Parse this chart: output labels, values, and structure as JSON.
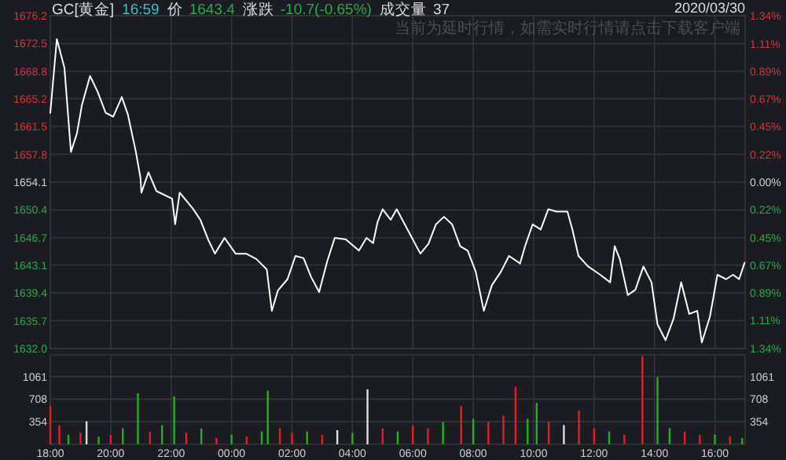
{
  "chart_data": [
    {
      "type": "line",
      "title": "GC[黄金]",
      "annotations": [
        "16:59",
        "价",
        "1643.4",
        "涨跌",
        "-10.7(-0.65%)",
        "成交量",
        "37",
        "2020/03/30",
        "当前为延时行情，如需实时行情请点击下载客户端"
      ],
      "x": [
        "2020-03-29T18:00",
        "2020-03-29T18:13",
        "2020-03-29T18:28",
        "2020-03-29T18:41",
        "2020-03-29T18:53",
        "2020-03-29T19:03",
        "2020-03-29T19:19",
        "2020-03-29T19:34",
        "2020-03-29T19:50",
        "2020-03-29T20:05",
        "2020-03-29T20:22",
        "2020-03-29T20:34",
        "2020-03-29T20:50",
        "2020-03-29T20:59",
        "2020-03-29T21:01",
        "2020-03-29T21:15",
        "2020-03-29T21:31",
        "2020-03-29T22:02",
        "2020-03-29T22:08",
        "2020-03-29T22:17",
        "2020-03-29T22:43",
        "2020-03-29T22:58",
        "2020-03-29T23:14",
        "2020-03-29T23:27",
        "2020-03-29T23:46",
        "2020-03-30T00:08",
        "2020-03-30T00:29",
        "2020-03-30T00:49",
        "2020-03-30T01:10",
        "2020-03-30T01:20",
        "2020-03-30T01:32",
        "2020-03-30T01:51",
        "2020-03-30T02:07",
        "2020-03-30T02:23",
        "2020-03-30T02:38",
        "2020-03-30T02:54",
        "2020-03-30T03:10",
        "2020-03-30T03:25",
        "2020-03-30T03:47",
        "2020-03-30T04:13",
        "2020-03-30T04:28",
        "2020-03-30T04:41",
        "2020-03-30T04:50",
        "2020-03-30T05:00",
        "2020-03-30T05:16",
        "2020-03-30T05:28",
        "2020-03-30T05:44",
        "2020-03-30T06:15",
        "2020-03-30T06:31",
        "2020-03-30T06:46",
        "2020-03-30T07:02",
        "2020-03-30T07:18",
        "2020-03-30T07:34",
        "2020-03-30T07:49",
        "2020-03-30T08:05",
        "2020-03-30T08:21",
        "2020-03-30T08:37",
        "2020-03-30T08:55",
        "2020-03-30T09:11",
        "2020-03-30T09:33",
        "2020-03-30T09:43",
        "2020-03-30T09:58",
        "2020-03-30T10:14",
        "2020-03-30T10:29",
        "2020-03-30T10:45",
        "2020-03-30T11:07",
        "2020-03-30T11:17",
        "2020-03-30T11:29",
        "2020-03-30T11:48",
        "2020-03-30T12:10",
        "2020-03-30T12:32",
        "2020-03-30T12:41",
        "2020-03-30T12:51",
        "2020-03-30T13:07",
        "2020-03-30T13:22",
        "2020-03-30T13:38",
        "2020-03-30T13:54",
        "2020-03-30T14:06",
        "2020-03-30T14:22",
        "2020-03-30T14:38",
        "2020-03-30T14:53",
        "2020-03-30T15:09",
        "2020-03-30T15:25",
        "2020-03-30T15:34",
        "2020-03-30T15:50",
        "2020-03-30T16:05",
        "2020-03-30T16:22",
        "2020-03-30T16:36",
        "2020-03-30T16:48",
        "2020-03-30T16:59"
      ],
      "series": [
        {
          "color": "#ffffff",
          "values": [
            1663.3,
            1673.1,
            1669.3,
            1658.1,
            1660.6,
            1664.4,
            1668.2,
            1666.1,
            1663.3,
            1662.8,
            1665.4,
            1663.1,
            1658.1,
            1654.7,
            1652.7,
            1655.4,
            1652.9,
            1651.9,
            1648.5,
            1652.7,
            1650.6,
            1649.1,
            1646.4,
            1644.6,
            1646.7,
            1644.6,
            1644.6,
            1643.9,
            1642.5,
            1637.0,
            1639.7,
            1641.2,
            1644.3,
            1644.0,
            1641.5,
            1639.5,
            1643.6,
            1646.7,
            1646.5,
            1645.0,
            1646.7,
            1646.0,
            1648.8,
            1650.5,
            1649.1,
            1650.5,
            1648.5,
            1644.6,
            1645.9,
            1648.5,
            1649.5,
            1648.5,
            1645.6,
            1645.0,
            1642.2,
            1637.0,
            1640.4,
            1642.2,
            1644.3,
            1643.3,
            1645.6,
            1648.5,
            1647.8,
            1650.5,
            1650.2,
            1650.2,
            1647.8,
            1644.3,
            1642.9,
            1641.9,
            1640.8,
            1645.6,
            1643.9,
            1639.1,
            1639.8,
            1642.9,
            1640.8,
            1635.2,
            1633.1,
            1636.0,
            1640.8,
            1636.6,
            1637.0,
            1632.8,
            1636.2,
            1641.8,
            1641.2,
            1641.8,
            1641.2,
            1643.4
          ]
        }
      ],
      "xlim": [
        "2020-03-29T18:00",
        "2020-03-30T17:00"
      ],
      "xticks": [
        {
          "value": "2020-03-29T18:00",
          "label": null
        },
        {
          "value": "2020-03-29T20:00",
          "label": null
        },
        {
          "value": "2020-03-29T22:00",
          "label": null
        },
        {
          "value": "2020-03-30T00:00",
          "label": null
        },
        {
          "value": "2020-03-30T02:00",
          "label": null
        },
        {
          "value": "2020-03-30T04:00",
          "label": null
        },
        {
          "value": "2020-03-30T06:00",
          "label": null
        },
        {
          "value": "2020-03-30T08:00",
          "label": null
        },
        {
          "value": "2020-03-30T10:00",
          "label": null
        },
        {
          "value": "2020-03-30T12:00",
          "label": null
        },
        {
          "value": "2020-03-30T14:00",
          "label": null
        },
        {
          "value": "2020-03-30T16:00",
          "label": null
        }
      ],
      "ylim": [
        1632.0,
        1676.2
      ],
      "yticks": [
        {
          "value": 1632,
          "label": "1632.0"
        },
        1635.7,
        1639.4,
        1643.1,
        1646.7,
        1650.4,
        1654.1,
        1657.8,
        1661.5,
        1665.2,
        1668.8,
        1672.5,
        1676.2
      ],
      "y2lim": [
        -1.34,
        1.34
      ],
      "y2ticks": [
        {
          "value": -1.34,
          "label": "1.34%"
        },
        {
          "value": -1.11,
          "label": "1.11%"
        },
        {
          "value": -0.89,
          "label": "0.89%"
        },
        {
          "value": -0.67,
          "label": "0.67%"
        },
        {
          "value": -0.45,
          "label": "0.45%"
        },
        {
          "value": -0.22,
          "label": "0.22%"
        },
        {
          "value": 0,
          "label": "0.00%"
        },
        {
          "value": 0.22,
          "label": "0.22%"
        },
        {
          "value": 0.45,
          "label": "0.45%"
        },
        {
          "value": 0.67,
          "label": "0.67%"
        },
        {
          "value": 0.89,
          "label": "0.89%"
        },
        {
          "value": 1.11,
          "label": "1.11%"
        },
        {
          "value": 1.34,
          "label": "1.34%"
        }
      ],
      "grid": true,
      "tick_labels": "y"
    },
    {
      "type": "bar",
      "x": [
        "2020-03-29T18:00",
        "2020-03-29T18:18",
        "2020-03-29T18:36",
        "2020-03-29T19:00",
        "2020-03-29T19:12",
        "2020-03-29T19:36",
        "2020-03-29T20:00",
        "2020-03-29T20:24",
        "2020-03-29T20:54",
        "2020-03-29T21:18",
        "2020-03-29T21:42",
        "2020-03-29T22:06",
        "2020-03-29T22:30",
        "2020-03-29T23:00",
        "2020-03-29T23:30",
        "2020-03-30T00:00",
        "2020-03-30T00:30",
        "2020-03-30T01:00",
        "2020-03-30T01:12",
        "2020-03-30T01:36",
        "2020-03-30T02:00",
        "2020-03-30T02:30",
        "2020-03-30T03:00",
        "2020-03-30T03:30",
        "2020-03-30T04:00",
        "2020-03-30T04:30",
        "2020-03-30T05:00",
        "2020-03-30T05:30",
        "2020-03-30T06:00",
        "2020-03-30T06:30",
        "2020-03-30T07:00",
        "2020-03-30T07:36",
        "2020-03-30T08:00",
        "2020-03-30T08:30",
        "2020-03-30T09:00",
        "2020-03-30T09:24",
        "2020-03-30T09:48",
        "2020-03-30T10:06",
        "2020-03-30T10:30",
        "2020-03-30T11:00",
        "2020-03-30T11:30",
        "2020-03-30T12:00",
        "2020-03-30T12:30",
        "2020-03-30T13:00",
        "2020-03-30T13:36",
        "2020-03-30T14:06",
        "2020-03-30T14:30",
        "2020-03-30T15:00",
        "2020-03-30T15:30",
        "2020-03-30T16:00",
        "2020-03-30T16:30",
        "2020-03-30T16:54"
      ],
      "values": [
        600,
        300,
        150,
        180,
        360,
        120,
        150,
        250,
        800,
        200,
        300,
        750,
        180,
        250,
        100,
        150,
        120,
        200,
        840,
        250,
        180,
        200,
        150,
        220,
        180,
        860,
        250,
        200,
        300,
        250,
        350,
        600,
        400,
        350,
        450,
        900,
        400,
        650,
        350,
        300,
        530,
        250,
        200,
        150,
        1380,
        1050,
        250,
        200,
        150,
        150,
        120,
        100
      ],
      "colors": [
        "#e02020",
        "#e02020",
        "#20b020",
        "#e02020",
        "#dddddd",
        "#20b020",
        "#e02020",
        "#20b020",
        "#20b020",
        "#e02020",
        "#20b020",
        "#20b020",
        "#e02020",
        "#20b020",
        "#e02020",
        "#20b020",
        "#e02020",
        "#20b020",
        "#20b020",
        "#e02020",
        "#e02020",
        "#20b020",
        "#e02020",
        "#dddddd",
        "#20b020",
        "#dddddd",
        "#e02020",
        "#20b020",
        "#e02020",
        "#e02020",
        "#20b020",
        "#e02020",
        "#20b020",
        "#e02020",
        "#e02020",
        "#e02020",
        "#20b020",
        "#20b020",
        "#e02020",
        "#dddddd",
        "#e02020",
        "#e02020",
        "#20b020",
        "#e02020",
        "#e02020",
        "#20b020",
        "#20b020",
        "#e02020",
        "#e02020",
        "#20b020",
        "#e02020",
        "#20b020"
      ],
      "xlim": [
        "2020-03-29T18:00",
        "2020-03-30T17:00"
      ],
      "xticks": [
        {
          "value": "2020-03-29T18:00",
          "label": "18:00"
        },
        {
          "value": "2020-03-29T20:00",
          "label": "20:00"
        },
        {
          "value": "2020-03-29T22:00",
          "label": "22:00"
        },
        {
          "value": "2020-03-30T00:00",
          "label": "00:00"
        },
        {
          "value": "2020-03-30T02:00",
          "label": "02:00"
        },
        {
          "value": "2020-03-30T04:00",
          "label": "04:00"
        },
        {
          "value": "2020-03-30T06:00",
          "label": "06:00"
        },
        {
          "value": "2020-03-30T08:00",
          "label": "08:00"
        },
        {
          "value": "2020-03-30T10:00",
          "label": "10:00"
        },
        {
          "value": "2020-03-30T12:00",
          "label": "12:00"
        },
        {
          "value": "2020-03-30T14:00",
          "label": "14:00"
        },
        {
          "value": "2020-03-30T16:00",
          "label": "16:00"
        }
      ],
      "ylim": [
        0,
        1400
      ],
      "yticks": [
        354,
        708,
        1061
      ],
      "y2lim": [
        0,
        1400
      ],
      "y2ticks": [
        354,
        708,
        1061
      ],
      "grid": true
    }
  ]
}
